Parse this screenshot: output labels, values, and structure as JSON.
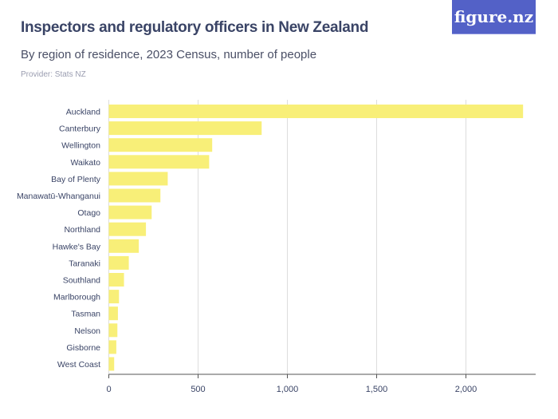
{
  "header": {
    "title": "Inspectors and regulatory officers in New Zealand",
    "subtitle": "By region of residence, 2023 Census, number of people",
    "provider": "Provider: Stats NZ",
    "logo": "figure.nz"
  },
  "colors": {
    "bar": "#f8ef78",
    "logo_bg": "#5361c7",
    "grid": "#dddddd"
  },
  "chart_data": {
    "type": "bar",
    "orientation": "horizontal",
    "categories": [
      "Auckland",
      "Canterbury",
      "Wellington",
      "Waikato",
      "Bay of Plenty",
      "Manawatū-Whanganui",
      "Otago",
      "Northland",
      "Hawke's Bay",
      "Taranaki",
      "Southland",
      "Marlborough",
      "Tasman",
      "Nelson",
      "Gisborne",
      "West Coast"
    ],
    "values": [
      2320,
      856,
      579,
      562,
      330,
      289,
      240,
      208,
      168,
      112,
      85,
      57,
      51,
      48,
      42,
      30
    ],
    "xlim": [
      0,
      2350
    ],
    "ticks": [
      0,
      500,
      1000,
      1500,
      2000
    ],
    "tick_labels": [
      "0",
      "500",
      "1,000",
      "1,500",
      "2,000"
    ],
    "grid": true
  }
}
